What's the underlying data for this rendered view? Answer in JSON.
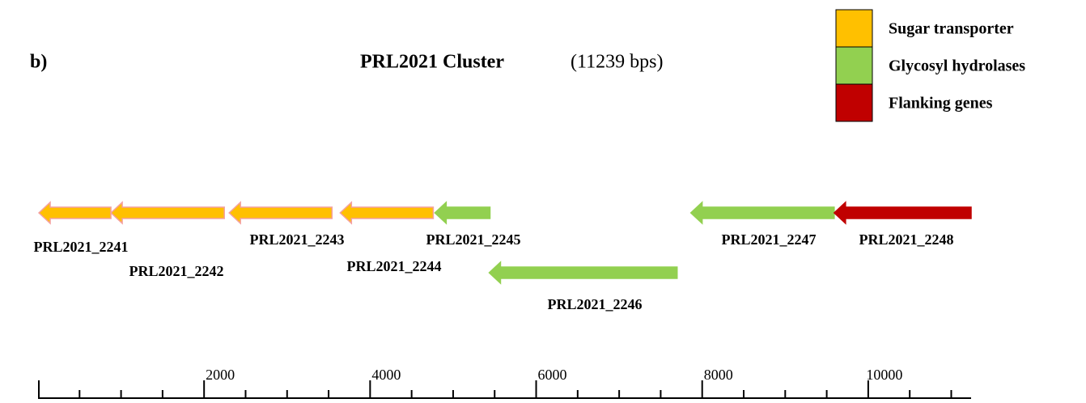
{
  "panel_label": "b)",
  "title": "PRL2021 Cluster",
  "subtitle": "(11239 bps)",
  "legend": [
    {
      "name": "Sugar transporter",
      "color": "#ffc000"
    },
    {
      "name": "Glycosyl hydrolases",
      "color": "#92d050"
    },
    {
      "name": "Flanking genes",
      "color": "#c00000"
    }
  ],
  "genes": [
    {
      "label": "PRL2021_2241",
      "start": 10,
      "end": 878,
      "category": 0
    },
    {
      "label": "PRL2021_2242",
      "start": 878,
      "end": 2244,
      "category": 0
    },
    {
      "label": "PRL2021_2243",
      "start": 2302,
      "end": 3541,
      "category": 0
    },
    {
      "label": "PRL2021_2244",
      "start": 3639,
      "end": 4761,
      "category": 0
    },
    {
      "label": "PRL2021_2245",
      "start": 4780,
      "end": 5444,
      "category": 1
    },
    {
      "label": "PRL2021_2246",
      "start": 5434,
      "end": 7698,
      "category": 1
    },
    {
      "label": "PRL2021_2247",
      "start": 7863,
      "end": 9590,
      "category": 1
    },
    {
      "label": "PRL2021_2248",
      "start": 9590,
      "end": 11239,
      "category": 2
    }
  ],
  "axis": {
    "xlim": [
      0,
      11239
    ],
    "xticks": [
      2000,
      4000,
      6000,
      8000,
      10000
    ],
    "minor_ticks": [
      500,
      1000,
      1500,
      2500,
      3000,
      3500,
      4500,
      5000,
      5500,
      6500,
      7000,
      7500,
      8500,
      9000,
      9500,
      10500,
      11000
    ]
  }
}
